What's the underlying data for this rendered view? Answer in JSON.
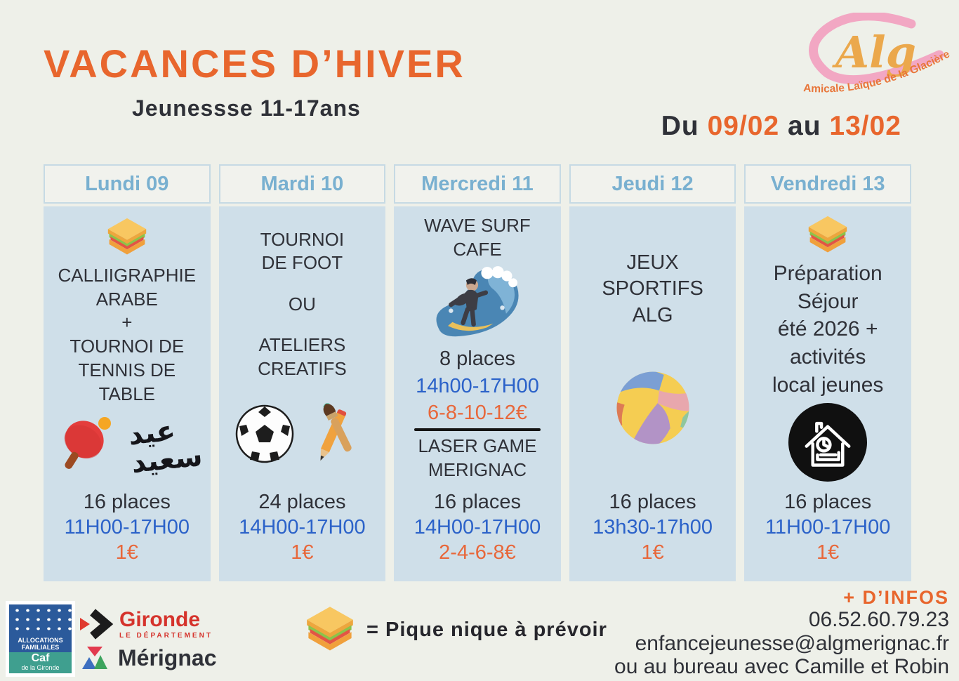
{
  "header": {
    "title": "VACANCES D’HIVER",
    "subtitle": "Jeunessse 11-17ans",
    "date": {
      "prefix": "Du",
      "start": "09/02",
      "connector": "au",
      "end": "13/02"
    }
  },
  "logo": {
    "name": "Alg",
    "tagline": "Amicale Laïque de la Glacière"
  },
  "columns": [
    {
      "day": "Lundi 09",
      "content": [
        {
          "kind": "icon",
          "icon": "sandwich-icon"
        },
        {
          "kind": "title",
          "text": "CALLIIGRAPHIE\nARABE\n+\nTOURNOI DE\nTENNIS DE TABLE"
        },
        {
          "kind": "icons",
          "iconsList": [
            "pingpong-icon",
            "arabic-calligraphy-icon"
          ]
        }
      ],
      "places": "16 places",
      "time": "11H00-17H00",
      "price": "1€"
    },
    {
      "day": "Mardi 10",
      "content": [
        {
          "kind": "title",
          "text": "TOURNOI\nDE FOOT"
        },
        {
          "kind": "title",
          "text": "OU"
        },
        {
          "kind": "title",
          "text": "ATELIERS\nCREATIFS"
        },
        {
          "kind": "icons",
          "iconsList": [
            "soccer-icon",
            "pencil-brush-icon"
          ]
        }
      ],
      "places": "24 places",
      "time": "14H00-17H00",
      "price": "1€"
    },
    {
      "day": "Mercredi 11",
      "content": [
        {
          "kind": "title",
          "text": "WAVE SURF CAFE"
        },
        {
          "kind": "icon",
          "icon": "surfer-icon"
        },
        {
          "kind": "places",
          "text": "8 places"
        },
        {
          "kind": "time",
          "text": "14h00-17H00"
        },
        {
          "kind": "price",
          "text": "6-8-10-12€"
        },
        {
          "kind": "divider"
        },
        {
          "kind": "title",
          "text": "LASER GAME\nMERIGNAC"
        }
      ],
      "places": "16 places",
      "time": "14H00-17H00",
      "price": "2-4-6-8€"
    },
    {
      "day": "Jeudi 12",
      "content": [
        {
          "kind": "title",
          "text": "JEUX SPORTIFS\nALG"
        },
        {
          "kind": "icon",
          "icon": "volleyball-icon"
        }
      ],
      "places": "16 places",
      "time": "13h30-17h00",
      "price": "1€"
    },
    {
      "day": "Vendredi 13",
      "content": [
        {
          "kind": "icon",
          "icon": "sandwich-icon"
        },
        {
          "kind": "title",
          "text": "Préparation\nSéjour\nété 2026 +\nactivités\nlocal jeunes"
        },
        {
          "kind": "icon",
          "icon": "house-stay-icon"
        }
      ],
      "places": "16 places",
      "time": "11H00-17H00",
      "price": "1€"
    }
  ],
  "legend": {
    "text": "= Pique nique à prévoir"
  },
  "contact": {
    "label": "+ D’INFOS",
    "phone": "06.52.60.79.23",
    "email": "enfancejeunesse@algmerignac.fr",
    "note": "ou au bureau avec Camille et Robin"
  },
  "partners": {
    "caf": {
      "line1": "ALLOCATIONS",
      "line2": "FAMILIALES",
      "name": "Caf",
      "sub": "de la Gironde"
    },
    "gironde": {
      "name": "Gironde",
      "sub": "LE DÉPARTEMENT"
    },
    "merignac": {
      "name": "Mérignac"
    }
  },
  "colors": {
    "accent_orange": "#e8662d",
    "day_header_blue": "#79b0d0",
    "time_blue": "#2b62c9",
    "price_orange": "#e8673a",
    "column_bg": "#cfdfe9",
    "page_bg": "#eef0e9",
    "dark_text": "#2f3138",
    "logo_pink": "#f2a7c3",
    "logo_gold": "#eba84c"
  }
}
